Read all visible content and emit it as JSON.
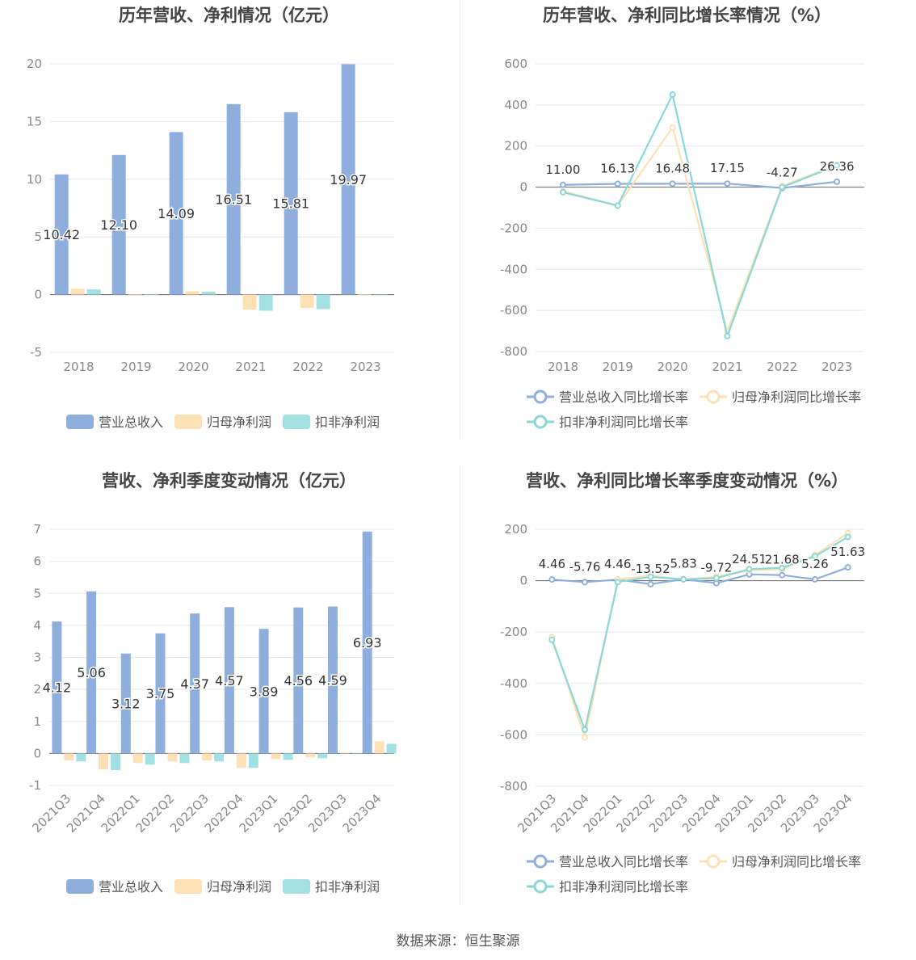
{
  "source_label": "数据来源：恒生聚源",
  "colors": {
    "revenue": "#8eaedd",
    "net_profit": "#fde0b4",
    "deducted_profit": "#a3e0e3",
    "revenue_line": "#8eaedd",
    "net_profit_line": "#fde0b4",
    "deducted_profit_line": "#88d8d8"
  },
  "chart_data": [
    {
      "id": "annual_amount",
      "type": "bar",
      "title": "历年营收、净利情况（亿元）",
      "categories": [
        "2018",
        "2019",
        "2020",
        "2021",
        "2022",
        "2023"
      ],
      "ylim": [
        -5,
        20
      ],
      "yticks": [
        -5,
        0,
        5,
        10,
        15,
        20
      ],
      "grid": true,
      "legend_position": "bottom",
      "series": [
        {
          "name": "营业总收入",
          "values": [
            10.42,
            12.1,
            14.09,
            16.51,
            15.81,
            19.97
          ],
          "labels": [
            "10.42",
            "12.10",
            "14.09",
            "16.51",
            "15.81",
            "19.97"
          ]
        },
        {
          "name": "归母净利润",
          "values": [
            0.5,
            0.05,
            0.3,
            -1.3,
            -1.15,
            0.05
          ]
        },
        {
          "name": "扣非净利润",
          "values": [
            0.45,
            0.05,
            0.25,
            -1.4,
            -1.25,
            0.0
          ]
        }
      ]
    },
    {
      "id": "annual_growth",
      "type": "line",
      "title": "历年营收、净利同比增长率情况（%）",
      "categories": [
        "2018",
        "2019",
        "2020",
        "2021",
        "2022",
        "2023"
      ],
      "ylim": [
        -800,
        600
      ],
      "yticks": [
        -800,
        -600,
        -400,
        -200,
        0,
        200,
        400,
        600
      ],
      "grid": true,
      "legend_position": "bottom",
      "series": [
        {
          "name": "营业总收入同比增长率",
          "values": [
            11.0,
            16.13,
            16.48,
            17.15,
            -4.27,
            26.36
          ],
          "labels": [
            "11.00",
            "16.13",
            "16.48",
            "17.15",
            "-4.27",
            "26.36"
          ]
        },
        {
          "name": "归母净利润同比增长率",
          "values": [
            -20,
            -90,
            290,
            -700,
            5,
            110
          ]
        },
        {
          "name": "扣非净利润同比增长率",
          "values": [
            -25,
            -90,
            450,
            -725,
            0,
            105
          ]
        }
      ]
    },
    {
      "id": "quarterly_amount",
      "type": "bar",
      "title": "营收、净利季度变动情况（亿元）",
      "categories": [
        "2021Q3",
        "2021Q4",
        "2022Q1",
        "2022Q2",
        "2022Q3",
        "2022Q4",
        "2023Q1",
        "2023Q2",
        "2023Q3",
        "2023Q4"
      ],
      "ylim": [
        -1,
        7
      ],
      "yticks": [
        -1,
        0,
        1,
        2,
        3,
        4,
        5,
        6,
        7
      ],
      "grid": true,
      "legend_position": "bottom",
      "series": [
        {
          "name": "营业总收入",
          "values": [
            4.12,
            5.06,
            3.12,
            3.75,
            4.37,
            4.57,
            3.89,
            4.56,
            4.59,
            6.93
          ],
          "labels": [
            "4.12",
            "5.06",
            "3.12",
            "3.75",
            "4.37",
            "4.57",
            "3.89",
            "4.56",
            "4.59",
            "6.93"
          ]
        },
        {
          "name": "归母净利润",
          "values": [
            -0.22,
            -0.5,
            -0.3,
            -0.25,
            -0.22,
            -0.45,
            -0.18,
            -0.12,
            0.02,
            0.38
          ]
        },
        {
          "name": "扣非净利润",
          "values": [
            -0.25,
            -0.52,
            -0.35,
            -0.3,
            -0.25,
            -0.45,
            -0.2,
            -0.15,
            0.0,
            0.3
          ]
        }
      ]
    },
    {
      "id": "quarterly_growth",
      "type": "line",
      "title": "营收、净利同比增长率季度变动情况（%）",
      "categories": [
        "2021Q3",
        "2021Q4",
        "2022Q1",
        "2022Q2",
        "2022Q3",
        "2022Q4",
        "2023Q1",
        "2023Q2",
        "2023Q3",
        "2023Q4"
      ],
      "ylim": [
        -800,
        200
      ],
      "yticks": [
        -800,
        -600,
        -400,
        -200,
        0,
        200
      ],
      "grid": true,
      "legend_position": "bottom",
      "series": [
        {
          "name": "营业总收入同比增长率",
          "values": [
            4.46,
            -5.76,
            4.46,
            -13.52,
            5.83,
            -9.72,
            24.51,
            21.68,
            5.26,
            51.63
          ],
          "labels": [
            "4.46",
            "-5.76",
            "4.46",
            "-13.52",
            "5.83",
            "-9.72",
            "24.51",
            "21.68",
            "5.26",
            "51.63"
          ]
        },
        {
          "name": "归母净利润同比增长率",
          "values": [
            -220,
            -610,
            5,
            20,
            5,
            15,
            40,
            45,
            100,
            185
          ]
        },
        {
          "name": "扣非净利润同比增长率",
          "values": [
            -230,
            -580,
            -5,
            15,
            5,
            10,
            45,
            50,
            95,
            170
          ]
        }
      ]
    }
  ]
}
